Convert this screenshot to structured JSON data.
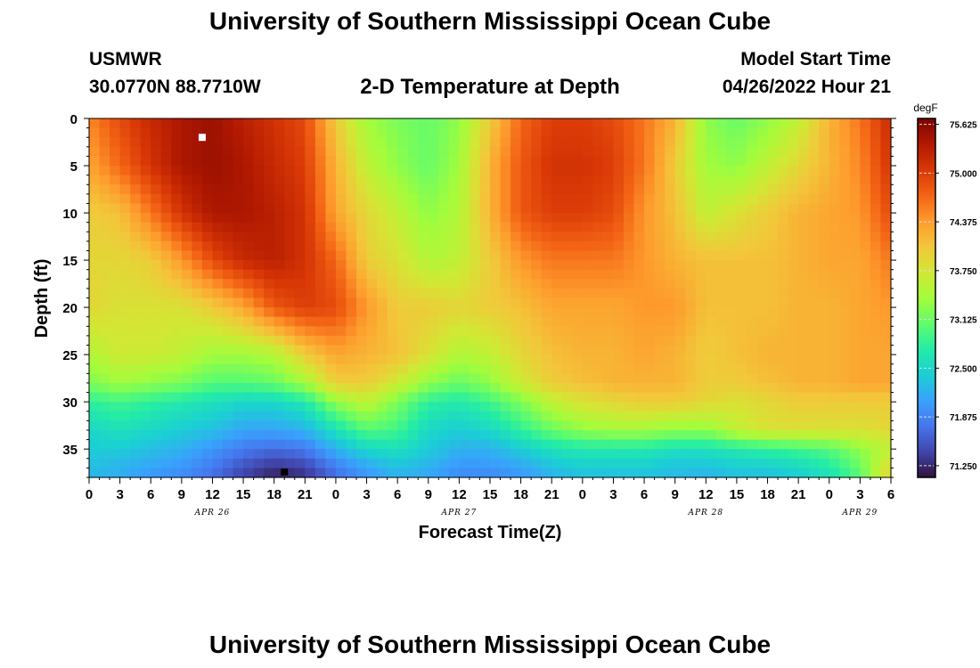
{
  "header": {
    "title": "University of Southern Mississippi Ocean Cube",
    "station": "USMWR",
    "coords": "30.0770N  88.7710W",
    "subtitle": "2-D Temperature at Depth",
    "start_label": "Model Start Time",
    "start_time": "04/26/2022 Hour 21"
  },
  "footer": {
    "title": "University of Southern Mississippi Ocean Cube"
  },
  "colors": {
    "colormap": [
      "#30123b",
      "#4145ab",
      "#4675ed",
      "#39a2fc",
      "#1bcfd4",
      "#24eca6",
      "#61fc6c",
      "#a4fc3b",
      "#d1e834",
      "#f3c63a",
      "#fe9b2d",
      "#f36315",
      "#d93806",
      "#b11901",
      "#7a0402"
    ]
  },
  "chart_data": {
    "type": "heatmap",
    "xlabel": "Forecast Time(Z)",
    "ylabel": "Depth (ft)",
    "x_ticks": [
      "0",
      "3",
      "6",
      "9",
      "12",
      "15",
      "18",
      "21",
      "0",
      "3",
      "6",
      "9",
      "12",
      "15",
      "18",
      "21",
      "0",
      "3",
      "6",
      "9",
      "12",
      "15",
      "18",
      "21",
      "0",
      "3",
      "6"
    ],
    "x_range_hours": [
      0,
      78
    ],
    "date_labels": [
      {
        "label": "APR 26",
        "hour": 12
      },
      {
        "label": "APR 27",
        "hour": 36
      },
      {
        "label": "APR 28",
        "hour": 60
      },
      {
        "label": "APR 29",
        "hour": 75
      }
    ],
    "y_ticks": [
      0,
      5,
      10,
      15,
      20,
      25,
      30,
      35
    ],
    "ylim": [
      0,
      38
    ],
    "colorbar": {
      "unit": "degF",
      "ticks": [
        "75.625",
        "75.000",
        "74.375",
        "73.750",
        "73.125",
        "72.500",
        "71.875",
        "71.250"
      ],
      "range": [
        71.1,
        75.7
      ]
    },
    "markers": [
      {
        "hour": 11,
        "depth": 2,
        "color": "#ffffff"
      },
      {
        "hour": 19,
        "depth": 38,
        "color": "#000000"
      }
    ],
    "depth_rows": [
      0,
      5,
      10,
      15,
      20,
      25,
      28,
      30,
      33,
      35,
      37,
      38
    ],
    "hour_cols": [
      0,
      3,
      6,
      9,
      12,
      15,
      18,
      21,
      24,
      27,
      30,
      33,
      36,
      39,
      42,
      45,
      48,
      51,
      54,
      57,
      60,
      63,
      66,
      69,
      72,
      75,
      78
    ],
    "values": [
      [
        74.5,
        74.9,
        75.2,
        75.4,
        75.5,
        75.3,
        75.1,
        74.9,
        74.0,
        73.4,
        73.2,
        73.1,
        73.3,
        74.0,
        74.7,
        75.0,
        75.0,
        74.9,
        74.6,
        74.2,
        73.3,
        73.1,
        73.3,
        73.6,
        74.2,
        74.6,
        75.2
      ],
      [
        74.3,
        74.7,
        75.1,
        75.4,
        75.5,
        75.4,
        75.2,
        75.0,
        74.2,
        73.6,
        73.3,
        73.1,
        73.4,
        74.2,
        74.8,
        75.1,
        75.1,
        75.0,
        74.6,
        74.0,
        73.4,
        73.3,
        73.6,
        73.9,
        74.2,
        74.5,
        75.1
      ],
      [
        74.0,
        74.1,
        74.6,
        75.1,
        75.4,
        75.4,
        75.3,
        75.1,
        74.3,
        73.9,
        73.6,
        73.3,
        73.5,
        74.2,
        74.8,
        75.0,
        75.0,
        74.9,
        74.4,
        74.1,
        73.6,
        73.8,
        74.0,
        74.2,
        74.3,
        74.4,
        74.9
      ],
      [
        73.9,
        73.9,
        74.0,
        74.4,
        74.9,
        75.2,
        75.3,
        75.1,
        74.7,
        74.0,
        73.8,
        73.5,
        73.6,
        74.0,
        74.4,
        74.6,
        74.6,
        74.6,
        74.4,
        74.2,
        74.1,
        74.1,
        74.1,
        74.2,
        74.3,
        74.3,
        74.6
      ],
      [
        73.9,
        73.8,
        73.8,
        73.8,
        74.0,
        74.3,
        74.8,
        75.0,
        74.9,
        74.4,
        74.0,
        74.0,
        73.9,
        74.0,
        74.1,
        74.3,
        74.3,
        74.3,
        74.4,
        74.4,
        74.1,
        74.1,
        74.1,
        74.2,
        74.2,
        74.3,
        74.4
      ],
      [
        73.5,
        73.7,
        73.7,
        73.6,
        73.4,
        73.4,
        73.5,
        74.0,
        74.3,
        74.2,
        74.1,
        73.8,
        73.5,
        73.6,
        73.9,
        74.1,
        74.2,
        74.2,
        74.3,
        74.2,
        74.0,
        74.1,
        74.2,
        74.2,
        74.2,
        74.3,
        74.3
      ],
      [
        73.2,
        73.4,
        73.3,
        73.2,
        73.0,
        73.0,
        73.1,
        73.4,
        74.0,
        74.0,
        73.7,
        73.3,
        73.1,
        73.3,
        73.7,
        74.0,
        74.1,
        74.2,
        74.2,
        74.2,
        74.0,
        74.0,
        74.1,
        74.2,
        74.2,
        74.3,
        74.3
      ],
      [
        72.8,
        72.9,
        72.8,
        72.7,
        72.6,
        72.5,
        72.5,
        72.7,
        73.3,
        73.6,
        73.2,
        72.8,
        72.7,
        72.9,
        73.2,
        73.6,
        73.8,
        73.9,
        74.0,
        74.0,
        73.9,
        73.8,
        73.9,
        74.0,
        74.0,
        74.0,
        74.0
      ],
      [
        72.5,
        72.6,
        72.5,
        72.4,
        72.3,
        72.1,
        72.1,
        72.2,
        72.6,
        73.0,
        72.9,
        72.5,
        72.4,
        72.5,
        72.8,
        73.1,
        73.3,
        73.4,
        73.4,
        73.3,
        73.3,
        73.6,
        73.8,
        73.8,
        73.8,
        73.8,
        73.9
      ],
      [
        72.4,
        72.4,
        72.3,
        72.2,
        72.0,
        71.8,
        71.7,
        71.8,
        72.2,
        72.5,
        72.6,
        72.4,
        72.2,
        72.2,
        72.4,
        72.6,
        72.7,
        72.7,
        72.7,
        72.6,
        72.6,
        72.7,
        72.8,
        72.9,
        73.0,
        73.3,
        73.6
      ],
      [
        72.3,
        72.2,
        72.1,
        72.0,
        71.8,
        71.5,
        71.3,
        71.4,
        71.8,
        72.1,
        72.3,
        72.2,
        72.0,
        72.0,
        72.1,
        72.3,
        72.4,
        72.4,
        72.4,
        72.3,
        72.3,
        72.4,
        72.4,
        72.5,
        72.7,
        73.1,
        73.9
      ],
      [
        72.2,
        72.2,
        72.0,
        71.9,
        71.7,
        71.4,
        71.2,
        71.3,
        71.7,
        72.0,
        72.2,
        72.1,
        71.9,
        71.9,
        72.0,
        72.2,
        72.3,
        72.3,
        72.3,
        72.3,
        72.2,
        72.3,
        72.3,
        72.4,
        72.6,
        73.0,
        74.0
      ]
    ]
  }
}
